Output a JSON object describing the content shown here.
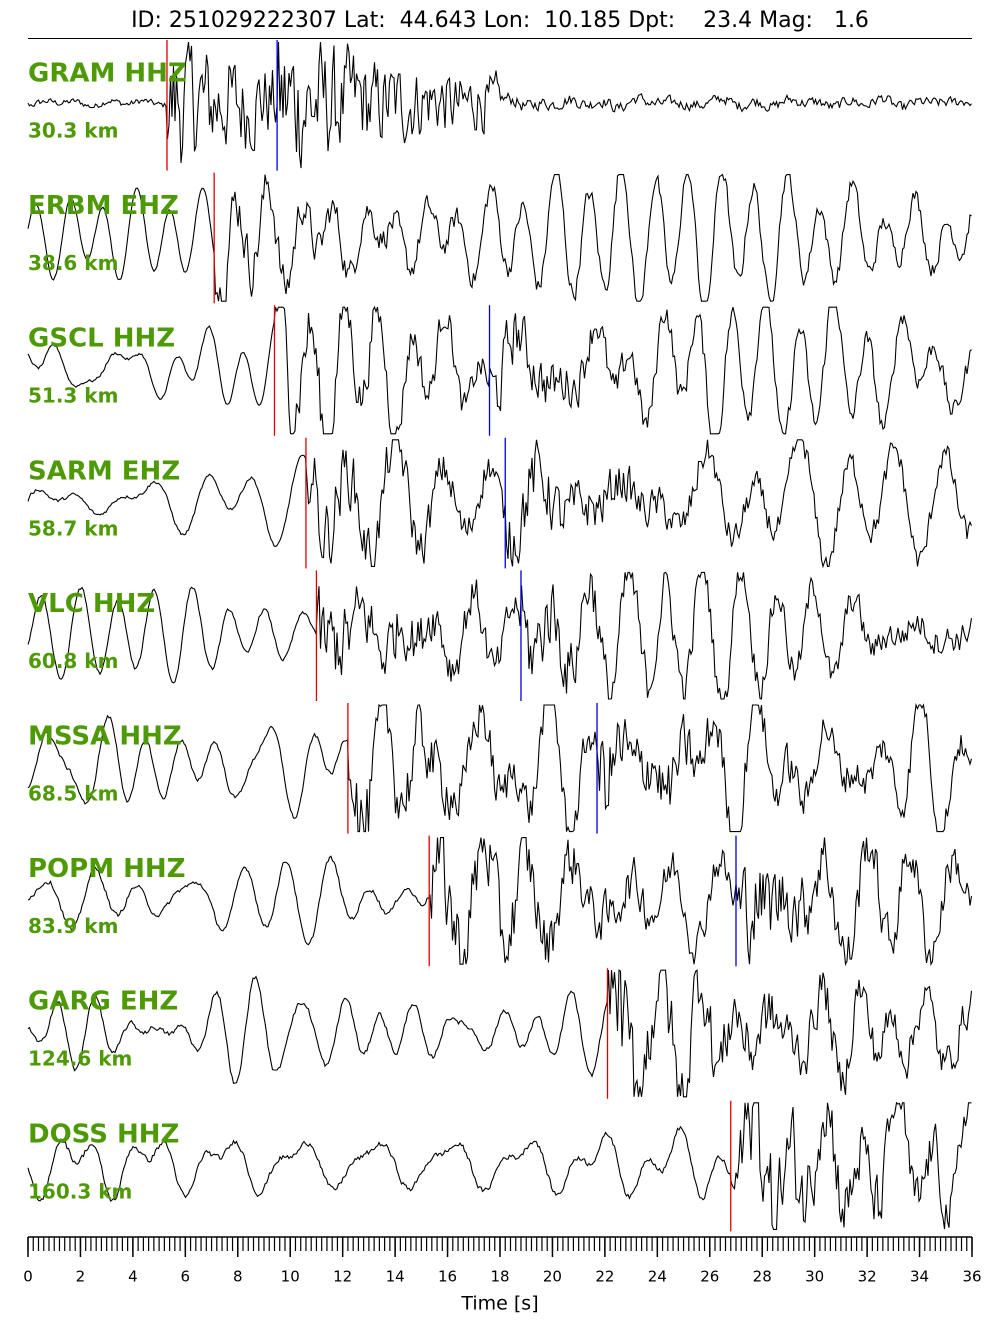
{
  "chart_data": {
    "type": "seismogram",
    "title": "ID: 251029222307 Lat:  44.643 Lon:  10.185 Dpt:    23.4 Mag:   1.6",
    "xlabel": "Time [s]",
    "xlim": [
      0,
      36
    ],
    "xticks": [
      0,
      2,
      4,
      6,
      8,
      10,
      12,
      14,
      16,
      18,
      20,
      22,
      24,
      26,
      28,
      30,
      32,
      34,
      36
    ],
    "minor_tick_step": 0.2,
    "label_color": "#4e9a06",
    "p_color": "#e00000",
    "s_color": "#0000dd",
    "trace_color": "#000000",
    "traces": [
      {
        "name": "GRAM HHZ",
        "distance": "30.3 km",
        "p_pick": 5.3,
        "s_pick": 9.5
      },
      {
        "name": "ERBM EHZ",
        "distance": "38.6 km",
        "p_pick": 7.1,
        "s_pick": null
      },
      {
        "name": "GSCL HHZ",
        "distance": "51.3 km",
        "p_pick": 9.4,
        "s_pick": 17.6
      },
      {
        "name": "SARM EHZ",
        "distance": "58.7 km",
        "p_pick": 10.6,
        "s_pick": 18.2
      },
      {
        "name": "VLC HHZ",
        "distance": "60.8 km",
        "p_pick": 11.0,
        "s_pick": 18.8
      },
      {
        "name": "MSSA HHZ",
        "distance": "68.5 km",
        "p_pick": 12.2,
        "s_pick": 21.7
      },
      {
        "name": "POPM HHZ",
        "distance": "83.9 km",
        "p_pick": 15.3,
        "s_pick": 27.0
      },
      {
        "name": "GARG EHZ",
        "distance": "124.6 km",
        "p_pick": 22.1,
        "s_pick": null
      },
      {
        "name": "DOSS HHZ",
        "distance": "160.3 km",
        "p_pick": 26.8,
        "s_pick": null
      }
    ]
  }
}
